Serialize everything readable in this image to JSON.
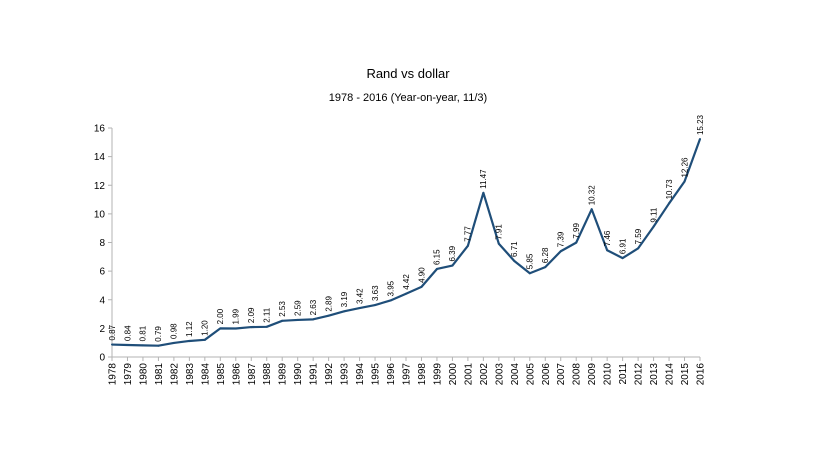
{
  "chart_data": {
    "type": "line",
    "title": "Rand vs dollar",
    "subtitle": "1978 - 2016 (Year-on-year, 11/3)",
    "xlabel": "",
    "ylabel": "",
    "ylim": [
      0,
      16
    ],
    "yticks": [
      0,
      2,
      4,
      6,
      8,
      10,
      12,
      14,
      16
    ],
    "grid": false,
    "legend": "none",
    "line_color": "#1f4e79",
    "x": [
      "1978",
      "1979",
      "1980",
      "1981",
      "1982",
      "1983",
      "1984",
      "1985",
      "1986",
      "1987",
      "1988",
      "1989",
      "1990",
      "1991",
      "1992",
      "1993",
      "1994",
      "1995",
      "1996",
      "1997",
      "1998",
      "1999",
      "2000",
      "2001",
      "2002",
      "2003",
      "2004",
      "2005",
      "2006",
      "2007",
      "2008",
      "2009",
      "2010",
      "2011",
      "2012",
      "2013",
      "2014",
      "2015",
      "2016"
    ],
    "series": [
      {
        "values": [
          0.87,
          0.84,
          0.81,
          0.79,
          0.98,
          1.12,
          1.2,
          2.0,
          1.99,
          2.09,
          2.11,
          2.53,
          2.59,
          2.63,
          2.89,
          3.19,
          3.42,
          3.63,
          3.95,
          4.42,
          4.9,
          6.15,
          6.39,
          7.77,
          11.47,
          7.91,
          6.71,
          5.85,
          6.28,
          7.39,
          7.99,
          10.32,
          7.46,
          6.91,
          7.59,
          9.11,
          10.73,
          12.26,
          15.23
        ],
        "labels": [
          "0.87",
          "0.84",
          "0.81",
          "0.79",
          "0.98",
          "1.12",
          "1.20",
          "2.00",
          "1.99",
          "2.09",
          "2.11",
          "2.53",
          "2.59",
          "2.63",
          "2.89",
          "3.19",
          "3.42",
          "3.63",
          "3.95",
          "4.42",
          "4.90",
          "6.15",
          "6.39",
          "7.77",
          "11.47",
          "7.91",
          "6.71",
          "5.85",
          "6.28",
          "7.39",
          "7.99",
          "10.32",
          "7.46",
          "6.91",
          "7.59",
          "9.11",
          "10.73",
          "12.26",
          "15.23"
        ]
      }
    ]
  }
}
